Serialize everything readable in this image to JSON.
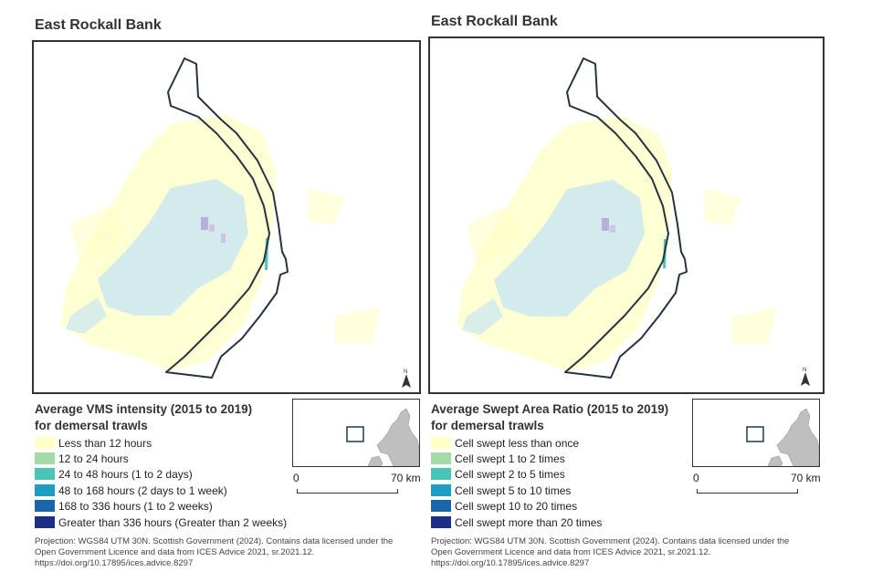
{
  "left_panel": {
    "map_title": "East Rockall Bank",
    "legend_title_line1": "Average VMS intensity (2015 to 2019)",
    "legend_title_line2": "for demersal trawls",
    "legend_items": [
      {
        "label": "Less than 12 hours",
        "color": "#ffffc6"
      },
      {
        "label": "12 to 24 hours",
        "color": "#a3dba7"
      },
      {
        "label": "24 to 48 hours (1 to 2 days)",
        "color": "#4cc3b7"
      },
      {
        "label": "48 to 168 hours (2 days to 1 week)",
        "color": "#1e9dc3"
      },
      {
        "label": "168 to 336 hours (1 to 2 weeks)",
        "color": "#1b65a9"
      },
      {
        "label": "Greater than 336 hours (Greater than 2 weeks)",
        "color": "#1b2f86"
      }
    ],
    "scale_start": "0",
    "scale_end": "70 km",
    "credits_line1": "Projection: WGS84 UTM 30N. Scottish Government (2024). Contains data licensed under the",
    "credits_line2": "Open Government Licence and data from ICES Advice 2021, sr.2021.12.",
    "credits_line3": "https://doi.org/10.17895/ices.advice.8297"
  },
  "right_panel": {
    "map_title": "East Rockall Bank",
    "legend_title_line1": "Average Swept Area Ratio (2015 to 2019)",
    "legend_title_line2": "for demersal trawls",
    "legend_items": [
      {
        "label": "Cell swept less than once",
        "color": "#ffffc6"
      },
      {
        "label": "Cell swept 1 to 2 times",
        "color": "#a3dba7"
      },
      {
        "label": "Cell swept 2 to 5 times",
        "color": "#4cc3b7"
      },
      {
        "label": "Cell swept 5 to 10 times",
        "color": "#1e9dc3"
      },
      {
        "label": "Cell swept 10 to 20 times",
        "color": "#1b65a9"
      },
      {
        "label": "Cell swept more than 20 times",
        "color": "#1b2f86"
      }
    ],
    "scale_start": "0",
    "scale_end": "70 km",
    "credits_line1": "Projection: WGS84 UTM 30N. Scottish Government (2024). Contains data licensed under the",
    "credits_line2": "Open Government Licence and data from ICES Advice 2021, sr.2021.12.",
    "credits_line3": "https://doi.org/10.17895/ices.advice.8297"
  },
  "icons": {
    "north_arrow": "north-arrow-icon"
  }
}
